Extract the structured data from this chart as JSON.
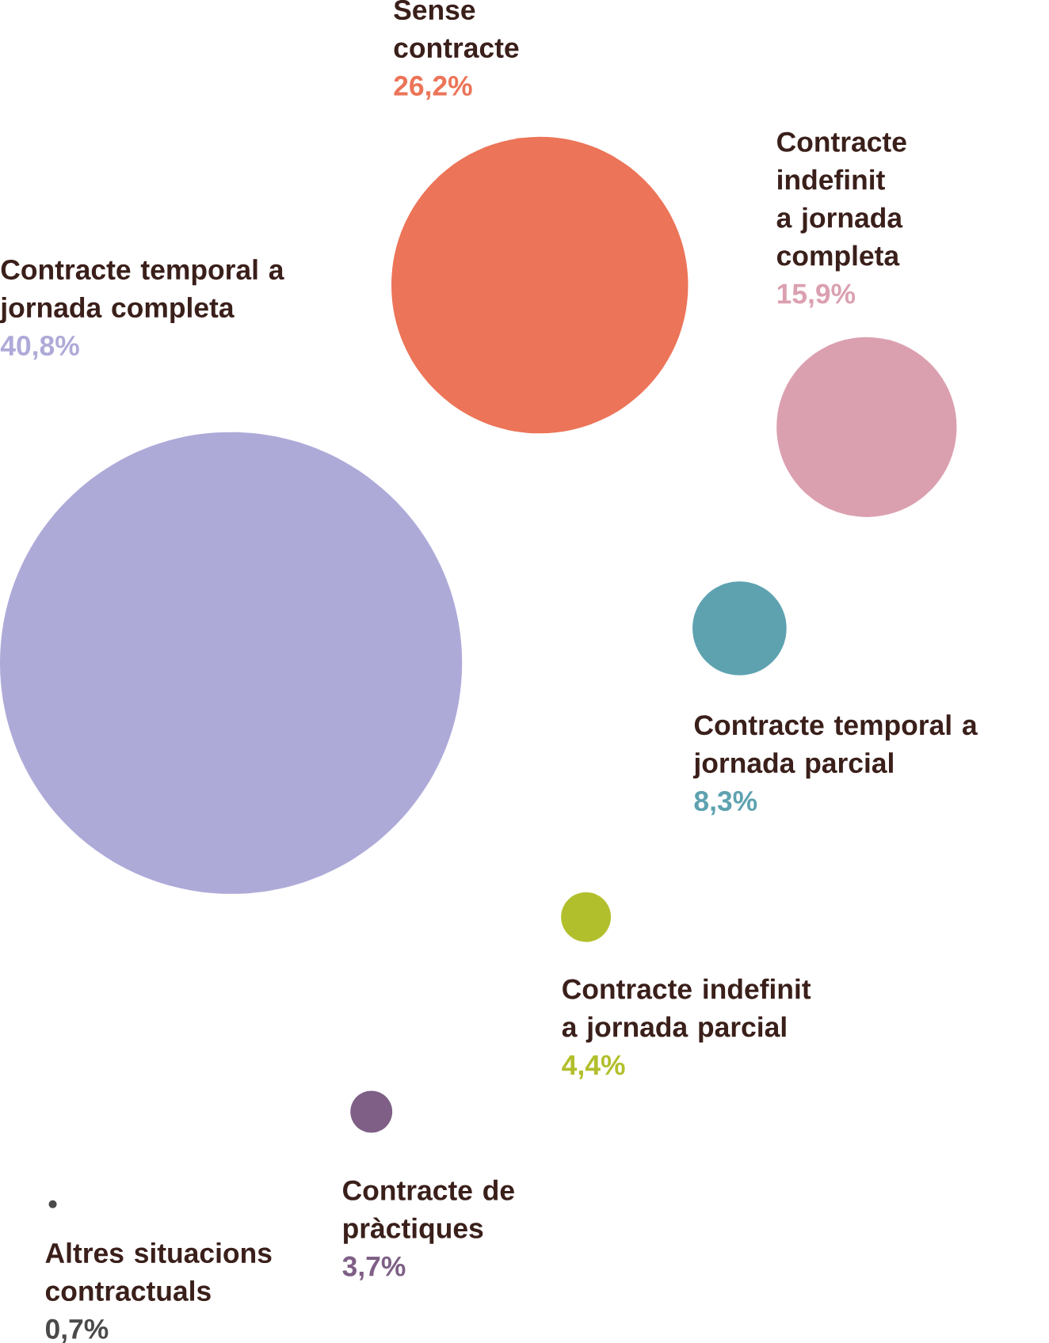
{
  "chart_data": {
    "type": "other",
    "categories": [
      "Contracte temporal a jornada completa",
      "Sense contracte",
      "Contracte indefinit a jornada completa",
      "Contracte temporal a jornada parcial",
      "Contracte indefinit a jornada parcial",
      "Contracte de pràctiques",
      "Altres situacions contractuals"
    ],
    "values": [
      40.8,
      26.2,
      15.9,
      8.3,
      4.4,
      3.7,
      0.7
    ],
    "value_labels": [
      "40,8%",
      "26,2%",
      "15,9%",
      "8,3%",
      "4,4%",
      "3,7%",
      "0,7%"
    ],
    "colors": [
      "#aeaad8",
      "#ec7458",
      "#dba0b0",
      "#5ea2b0",
      "#b2bf2c",
      "#7f5f86",
      "#4a4a4a"
    ]
  }
}
